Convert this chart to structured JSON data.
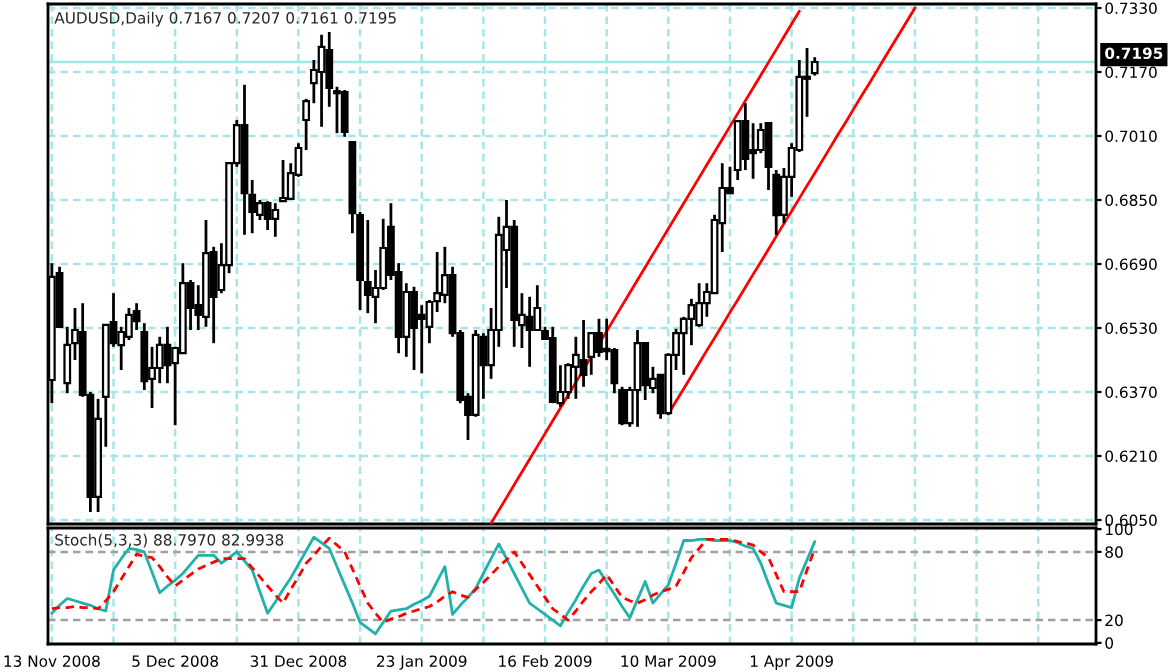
{
  "chart_data": [
    {
      "type": "candlestick",
      "title": "AUDUSD,Daily 0.7167 0.7207 0.7161 0.7195",
      "categories": [
        null,
        null,
        null,
        null,
        null,
        null,
        null,
        null,
        null,
        null,
        null,
        null,
        null,
        null,
        null,
        null,
        null,
        null,
        null,
        null,
        null,
        null,
        null,
        null,
        null,
        null,
        null,
        null,
        null,
        null,
        null,
        null,
        null,
        null,
        null,
        null,
        null,
        null,
        null,
        null,
        null,
        null,
        null,
        null,
        null,
        null,
        null,
        null,
        null,
        null,
        null,
        null,
        null,
        null,
        null,
        null,
        null,
        null,
        null,
        null,
        null,
        null,
        null,
        null,
        null,
        null,
        null,
        null,
        null,
        null,
        null,
        null,
        null,
        null,
        null,
        null,
        null,
        null,
        null,
        null,
        null,
        null,
        null,
        null,
        null,
        null,
        null,
        null,
        null,
        null,
        null,
        null,
        null,
        null,
        null,
        null,
        null,
        null,
        null,
        null,
        null,
        null,
        null,
        null,
        null,
        null,
        null,
        null,
        null,
        null,
        null,
        null,
        null,
        null,
        null,
        null,
        null,
        null,
        null,
        null,
        null,
        null,
        null,
        null,
        null,
        null,
        null,
        null,
        null,
        null,
        null,
        null,
        null,
        null,
        null,
        null
      ],
      "ohlc": [
        [
          0.64,
          0.6692,
          0.6342,
          0.6658
        ],
        [
          0.6667,
          0.6683,
          0.6533,
          0.6533
        ],
        [
          0.6392,
          0.6533,
          0.6367,
          0.6488
        ],
        [
          0.6492,
          0.658,
          0.645,
          0.6525
        ],
        [
          0.652,
          0.6592,
          0.6358,
          0.6363
        ],
        [
          0.6363,
          0.637,
          0.607,
          0.6108
        ],
        [
          0.6108,
          0.6353,
          0.607,
          0.6303
        ],
        [
          0.6358,
          0.6538,
          0.6233,
          0.6538
        ],
        [
          0.6545,
          0.6617,
          0.6483,
          0.6492
        ],
        [
          0.6487,
          0.6533,
          0.6425,
          0.652
        ],
        [
          0.6508,
          0.658,
          0.65,
          0.6563
        ],
        [
          0.6572,
          0.6592,
          0.6525,
          0.6547
        ],
        [
          0.652,
          0.6542,
          0.6375,
          0.6397
        ],
        [
          0.6403,
          0.6483,
          0.633,
          0.643
        ],
        [
          0.643,
          0.6508,
          0.6392,
          0.6488
        ],
        [
          0.6488,
          0.6533,
          0.6392,
          0.6437
        ],
        [
          0.6442,
          0.6483,
          0.6287,
          0.648
        ],
        [
          0.6467,
          0.6692,
          0.6467,
          0.6642
        ],
        [
          0.6642,
          0.665,
          0.6525,
          0.658
        ],
        [
          0.6587,
          0.6637,
          0.6525,
          0.6563
        ],
        [
          0.6558,
          0.68,
          0.6533,
          0.6717
        ],
        [
          0.672,
          0.6733,
          0.6492,
          0.6608
        ],
        [
          0.6625,
          0.6742,
          0.6617,
          0.6687
        ],
        [
          0.6687,
          0.6942,
          0.6667,
          0.6942
        ],
        [
          0.6942,
          0.705,
          0.6933,
          0.7037
        ],
        [
          0.7037,
          0.7138,
          0.6763,
          0.6867
        ],
        [
          0.6863,
          0.69,
          0.6767,
          0.682
        ],
        [
          0.6813,
          0.685,
          0.68,
          0.6842
        ],
        [
          0.6842,
          0.6847,
          0.6775,
          0.6803
        ],
        [
          0.6803,
          0.6842,
          0.6758,
          0.6825
        ],
        [
          0.6847,
          0.695,
          0.6847,
          0.6855
        ],
        [
          0.6853,
          0.6942,
          0.6853,
          0.6917
        ],
        [
          0.6913,
          0.6992,
          0.6908,
          0.698
        ],
        [
          0.705,
          0.7103,
          0.6975,
          0.7097
        ],
        [
          0.7142,
          0.72,
          0.7092,
          0.7175
        ],
        [
          0.717,
          0.7263,
          0.7033,
          0.7233
        ],
        [
          0.7225,
          0.727,
          0.7083,
          0.713
        ],
        [
          0.7122,
          0.7133,
          0.7017,
          0.7117
        ],
        [
          0.712,
          0.7125,
          0.7008,
          0.702
        ],
        [
          0.6995,
          0.6995,
          0.6767,
          0.6817
        ],
        [
          0.6812,
          0.682,
          0.6575,
          0.665
        ],
        [
          0.6645,
          0.68,
          0.6567,
          0.6613
        ],
        [
          0.6608,
          0.6675,
          0.6542,
          0.663
        ],
        [
          0.663,
          0.6803,
          0.6625,
          0.673
        ],
        [
          0.6783,
          0.6842,
          0.665,
          0.6663
        ],
        [
          0.667,
          0.6692,
          0.6467,
          0.6508
        ],
        [
          0.6508,
          0.6642,
          0.6458,
          0.662
        ],
        [
          0.662,
          0.6633,
          0.6425,
          0.653
        ],
        [
          0.6563,
          0.6587,
          0.6417,
          0.6553
        ],
        [
          0.6533,
          0.66,
          0.6492,
          0.6595
        ],
        [
          0.6597,
          0.672,
          0.657,
          0.6617
        ],
        [
          0.6613,
          0.6733,
          0.6592,
          0.6662
        ],
        [
          0.6662,
          0.6683,
          0.6508,
          0.6517
        ],
        [
          0.6517,
          0.6525,
          0.6342,
          0.635
        ],
        [
          0.6358,
          0.6367,
          0.625,
          0.6313
        ],
        [
          0.6313,
          0.6525,
          0.6308,
          0.6513
        ],
        [
          0.6508,
          0.6517,
          0.6353,
          0.6437
        ],
        [
          0.6437,
          0.658,
          0.6403,
          0.6525
        ],
        [
          0.6525,
          0.6808,
          0.6483,
          0.6763
        ],
        [
          0.6725,
          0.685,
          0.663,
          0.6783
        ],
        [
          0.6783,
          0.68,
          0.6483,
          0.655
        ],
        [
          0.6537,
          0.6617,
          0.648,
          0.6563
        ],
        [
          0.6558,
          0.6608,
          0.6433,
          0.6525
        ],
        [
          0.6525,
          0.6637,
          0.6525,
          0.658
        ],
        [
          0.6522,
          0.6533,
          0.65,
          0.6503
        ],
        [
          0.6505,
          0.6533,
          0.6342,
          0.6345
        ],
        [
          0.6342,
          0.6437,
          0.6333,
          0.637
        ],
        [
          0.637,
          0.6442,
          0.6353,
          0.6437
        ],
        [
          0.6433,
          0.6508,
          0.6353,
          0.6463
        ],
        [
          0.645,
          0.655,
          0.6383,
          0.6413
        ],
        [
          0.6458,
          0.6517,
          0.6413,
          0.6517
        ],
        [
          0.6517,
          0.6553,
          0.6458,
          0.647
        ],
        [
          0.6478,
          0.6553,
          0.645,
          0.6472
        ],
        [
          0.6475,
          0.648,
          0.6367,
          0.6392
        ],
        [
          0.6375,
          0.6383,
          0.6287,
          0.6292
        ],
        [
          0.6292,
          0.6383,
          0.6283,
          0.6375
        ],
        [
          0.6375,
          0.6525,
          0.6283,
          0.6492
        ],
        [
          0.6492,
          0.6492,
          0.635,
          0.6387
        ],
        [
          0.638,
          0.6433,
          0.6367,
          0.6403
        ],
        [
          0.6413,
          0.6413,
          0.6303,
          0.6317
        ],
        [
          0.6317,
          0.6467,
          0.6313,
          0.6463
        ],
        [
          0.6463,
          0.6528,
          0.6425,
          0.6517
        ],
        [
          0.6517,
          0.6558,
          0.6413,
          0.6553
        ],
        [
          0.6553,
          0.6603,
          0.6487,
          0.6587
        ],
        [
          0.6537,
          0.6642,
          0.6533,
          0.6592
        ],
        [
          0.6592,
          0.6642,
          0.6558,
          0.662
        ],
        [
          0.6617,
          0.6813,
          0.6617,
          0.68
        ],
        [
          0.6792,
          0.6942,
          0.672,
          0.688
        ],
        [
          0.688,
          0.6933,
          0.6867,
          0.6867
        ],
        [
          0.6925,
          0.705,
          0.69,
          0.7047
        ],
        [
          0.7047,
          0.7092,
          0.6925,
          0.6953
        ],
        [
          0.6975,
          0.7042,
          0.6903,
          0.6967
        ],
        [
          0.6975,
          0.7042,
          0.6967,
          0.7025
        ],
        [
          0.7042,
          0.7045,
          0.6875,
          0.6933
        ],
        [
          0.6913,
          0.6925,
          0.6763,
          0.6812
        ],
        [
          0.6813,
          0.693,
          0.6792,
          0.6908
        ],
        [
          0.6908,
          0.6992,
          0.6858,
          0.698
        ],
        [
          0.6975,
          0.72,
          0.697,
          0.7158
        ],
        [
          0.7158,
          0.723,
          0.7058,
          0.7153
        ],
        [
          0.7167,
          0.7207,
          0.7161,
          0.7195
        ],
        null,
        null,
        null,
        null,
        null,
        null,
        null,
        null,
        null,
        null,
        null,
        null,
        null,
        null,
        null,
        null,
        null,
        null,
        null,
        null,
        null,
        null,
        null,
        null,
        null,
        null,
        null,
        null,
        null,
        null,
        null,
        null,
        null,
        null,
        null,
        null
      ],
      "series": [
        {
          "type": "line",
          "values": [
            null,
            null,
            null,
            null,
            null,
            null,
            null,
            null,
            null,
            null,
            null,
            null,
            null,
            null,
            null,
            null,
            null,
            null,
            null,
            null,
            null,
            null,
            null,
            null,
            null,
            null,
            null,
            null,
            null,
            null,
            null,
            null,
            null,
            null,
            null,
            null,
            null,
            null,
            null,
            null,
            null,
            null,
            null,
            null,
            null,
            null,
            null,
            null,
            null,
            null,
            null,
            null,
            null,
            null,
            null,
            null,
            null,
            0.6042,
            0.6074,
            0.6106,
            0.6138,
            0.617,
            0.6202,
            0.6234,
            0.6266,
            0.6298,
            0.633,
            0.6362,
            0.6394,
            0.6426,
            0.6458,
            0.649,
            0.6522,
            0.6554,
            0.6586,
            0.6618,
            0.665,
            0.6682,
            0.6714,
            0.6746,
            0.6778,
            0.681,
            0.6842,
            0.6874,
            0.6906,
            0.6938,
            0.697,
            0.7002,
            0.7034,
            0.7066,
            0.7098,
            0.713,
            0.7162,
            0.7194,
            0.7226,
            0.7258,
            0.729,
            0.7322,
            null,
            null,
            null,
            null,
            null,
            null,
            null,
            null,
            null,
            null,
            null,
            null,
            null,
            null,
            null,
            null,
            null,
            null,
            null,
            null,
            null,
            null,
            null,
            null,
            null,
            null,
            null,
            null,
            null,
            null,
            null,
            null,
            null,
            null,
            null,
            null,
            null,
            null
          ],
          "color": "#ff0000"
        },
        {
          "type": "line",
          "values": [
            null,
            null,
            null,
            null,
            null,
            null,
            null,
            null,
            null,
            null,
            null,
            null,
            null,
            null,
            null,
            null,
            null,
            null,
            null,
            null,
            null,
            null,
            null,
            null,
            null,
            null,
            null,
            null,
            null,
            null,
            null,
            null,
            null,
            null,
            null,
            null,
            null,
            null,
            null,
            null,
            null,
            null,
            null,
            null,
            null,
            null,
            null,
            null,
            null,
            null,
            null,
            null,
            null,
            null,
            null,
            null,
            null,
            null,
            null,
            null,
            null,
            null,
            null,
            null,
            null,
            null,
            null,
            null,
            null,
            null,
            null,
            null,
            null,
            null,
            null,
            null,
            null,
            null,
            null,
            null,
            0.6315,
            0.6347,
            0.6378,
            0.641,
            0.6442,
            0.6474,
            0.6505,
            0.6537,
            0.6569,
            0.66,
            0.6632,
            0.6664,
            0.6695,
            0.6727,
            0.6759,
            0.6791,
            0.6822,
            0.6854,
            0.6886,
            0.6917,
            0.6949,
            0.6981,
            0.7013,
            0.7044,
            0.7076,
            0.7108,
            0.7139,
            0.7171,
            0.7203,
            0.7235,
            0.7266,
            0.7298,
            0.733,
            null,
            null,
            null,
            null,
            null,
            null,
            null,
            null,
            null,
            null,
            null,
            null,
            null,
            null,
            null,
            null,
            null,
            null,
            null,
            null,
            null,
            null,
            null
          ],
          "color": "#ff0000"
        }
      ],
      "ylim": [
        0.604,
        0.734
      ],
      "yticks": [
        {
          "value": 0.605,
          "label": "0.6050"
        },
        {
          "value": 0.621,
          "label": "0.6210"
        },
        {
          "value": 0.637,
          "label": "0.6370"
        },
        {
          "value": 0.653,
          "label": "0.6530"
        },
        {
          "value": 0.669,
          "label": "0.6690"
        },
        {
          "value": 0.685,
          "label": "0.6850"
        },
        {
          "value": 0.701,
          "label": "0.7010"
        },
        {
          "value": 0.717,
          "label": "0.7170"
        },
        {
          "value": 0.733,
          "label": "0.7330"
        }
      ],
      "tick_labels": "y",
      "grid": true,
      "ref_lines": [
        {
          "axis": "y",
          "value": 0.7195,
          "label": "0.7195",
          "color": "#a0e8e8"
        }
      ]
    },
    {
      "type": "line",
      "categories": [
        "13 Nov 2008",
        null,
        null,
        null,
        null,
        null,
        null,
        null,
        null,
        null,
        null,
        null,
        null,
        null,
        null,
        null,
        "5 Dec 2008",
        null,
        null,
        null,
        null,
        null,
        null,
        null,
        null,
        null,
        null,
        null,
        null,
        null,
        null,
        null,
        "31 Dec 2008",
        null,
        null,
        null,
        null,
        null,
        null,
        null,
        null,
        null,
        null,
        null,
        null,
        null,
        null,
        null,
        "23 Jan 2009",
        null,
        null,
        null,
        null,
        null,
        null,
        null,
        null,
        null,
        null,
        null,
        null,
        null,
        null,
        null,
        "16 Feb 2009",
        null,
        null,
        null,
        null,
        null,
        null,
        null,
        null,
        null,
        null,
        null,
        null,
        null,
        null,
        null,
        "10 Mar 2009",
        null,
        null,
        null,
        null,
        null,
        null,
        null,
        null,
        null,
        null,
        null,
        null,
        null,
        null,
        null,
        "1 Apr 2009",
        null,
        null,
        null,
        null,
        null,
        null,
        null,
        null,
        null,
        null,
        null,
        null,
        null,
        null,
        null,
        null,
        null,
        null,
        null,
        null,
        null,
        null,
        null,
        null,
        null,
        null,
        null,
        null,
        null,
        null,
        null,
        null,
        null,
        null,
        null,
        null,
        null,
        null,
        null
      ],
      "series": [
        {
          "values": [
            26,
            33,
            39,
            37,
            35,
            33,
            30,
            28,
            64,
            74,
            83,
            82,
            80,
            62,
            44,
            50,
            55,
            61,
            69,
            77,
            77,
            77,
            70,
            75,
            80,
            72,
            64,
            45,
            26,
            36,
            47,
            57,
            69,
            81,
            93,
            88,
            83,
            67,
            51,
            35,
            18,
            13,
            8,
            18,
            28,
            29,
            30,
            34,
            37,
            41,
            54,
            67,
            25,
            33,
            40,
            48,
            61,
            74,
            87,
            74,
            61,
            48,
            35,
            30,
            25,
            20,
            15,
            27,
            38,
            50,
            61,
            64,
            53,
            43,
            32,
            22,
            38,
            54,
            35,
            43,
            51,
            70,
            90,
            90,
            91,
            91,
            90,
            90,
            90,
            88,
            85,
            83,
            70,
            52,
            35,
            33,
            31,
            57,
            73,
            89,
            null,
            null,
            null,
            null,
            null,
            null,
            null,
            null,
            null,
            null,
            null,
            null,
            null,
            null,
            null,
            null,
            null,
            null,
            null,
            null,
            null,
            null,
            null,
            null,
            null,
            null,
            null,
            null,
            null,
            null,
            null,
            null,
            null,
            null,
            null,
            null
          ],
          "color": "#20b2aa",
          "line_style": "solid"
        },
        {
          "values": [
            30,
            31,
            31,
            32,
            31,
            31,
            30,
            37,
            45,
            56,
            67,
            78,
            76,
            75,
            67,
            58,
            50,
            55,
            60,
            65,
            68,
            71,
            74,
            74,
            74,
            74,
            66,
            58,
            50,
            42,
            35,
            47,
            58,
            70,
            77,
            85,
            92,
            86,
            80,
            65,
            50,
            35,
            26,
            18,
            21,
            23,
            26,
            28,
            30,
            32,
            36,
            41,
            45,
            42,
            40,
            47,
            53,
            60,
            67,
            73,
            80,
            70,
            60,
            50,
            40,
            30,
            25,
            20,
            28,
            37,
            45,
            52,
            60,
            50,
            40,
            37,
            35,
            38,
            42,
            45,
            47,
            50,
            62,
            75,
            83,
            91,
            91,
            91,
            91,
            89,
            88,
            86,
            80,
            75,
            60,
            45,
            45,
            45,
            64,
            83,
            null,
            null,
            null,
            null,
            null,
            null,
            null,
            null,
            null,
            null,
            null,
            null,
            null,
            null,
            null,
            null,
            null,
            null,
            null,
            null,
            null,
            null,
            null,
            null,
            null,
            null,
            null,
            null,
            null,
            null,
            null,
            null,
            null,
            null,
            null,
            null
          ],
          "color": "#ff0000",
          "line_style": "dashed"
        }
      ],
      "annotations": [
        "Stoch(5,3,3) 88.7970 82.9938"
      ],
      "ylim": [
        -1,
        101
      ],
      "yticks": [
        0,
        20,
        80,
        100
      ],
      "grid": "x",
      "ref_lines": [
        {
          "axis": "y",
          "value": 20,
          "color": "#a0a0a0",
          "line_style": "dashed"
        },
        {
          "axis": "y",
          "value": 80,
          "color": "#a0a0a0",
          "line_style": "dashed"
        }
      ]
    }
  ]
}
